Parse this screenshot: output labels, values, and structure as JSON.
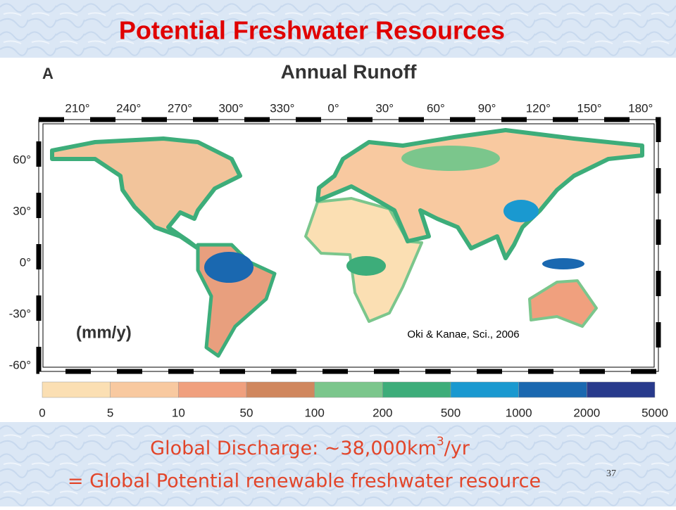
{
  "header": {
    "title": "Potential Freshwater Resources"
  },
  "map": {
    "panel": "A",
    "title": "Annual Runoff",
    "unit": "(mm/y)",
    "credit": "Oki & Kanae, Sci., 2006",
    "longitudes": [
      "210°",
      "240°",
      "270°",
      "300°",
      "330°",
      "0°",
      "30°",
      "60°",
      "90°",
      "120°",
      "150°",
      "180°"
    ],
    "latitudes": [
      "60°",
      "30°",
      "0°",
      "-30°",
      "-60°"
    ]
  },
  "legend": {
    "breaks": [
      0,
      5,
      10,
      50,
      100,
      200,
      500,
      1000,
      2000,
      5000
    ],
    "colors": [
      "#fbdfb3",
      "#f8c9a0",
      "#f0a07e",
      "#d0875e",
      "#7bc68c",
      "#3dad7a",
      "#1a99d0",
      "#1a68b0",
      "#283a8c"
    ]
  },
  "footer": {
    "line1": {
      "text": "Global Discharge: ~38,000km",
      "superscript": "3",
      "suffix": "/yr"
    },
    "line2": "= Global Potential renewable freshwater resource",
    "page_number": "37"
  }
}
